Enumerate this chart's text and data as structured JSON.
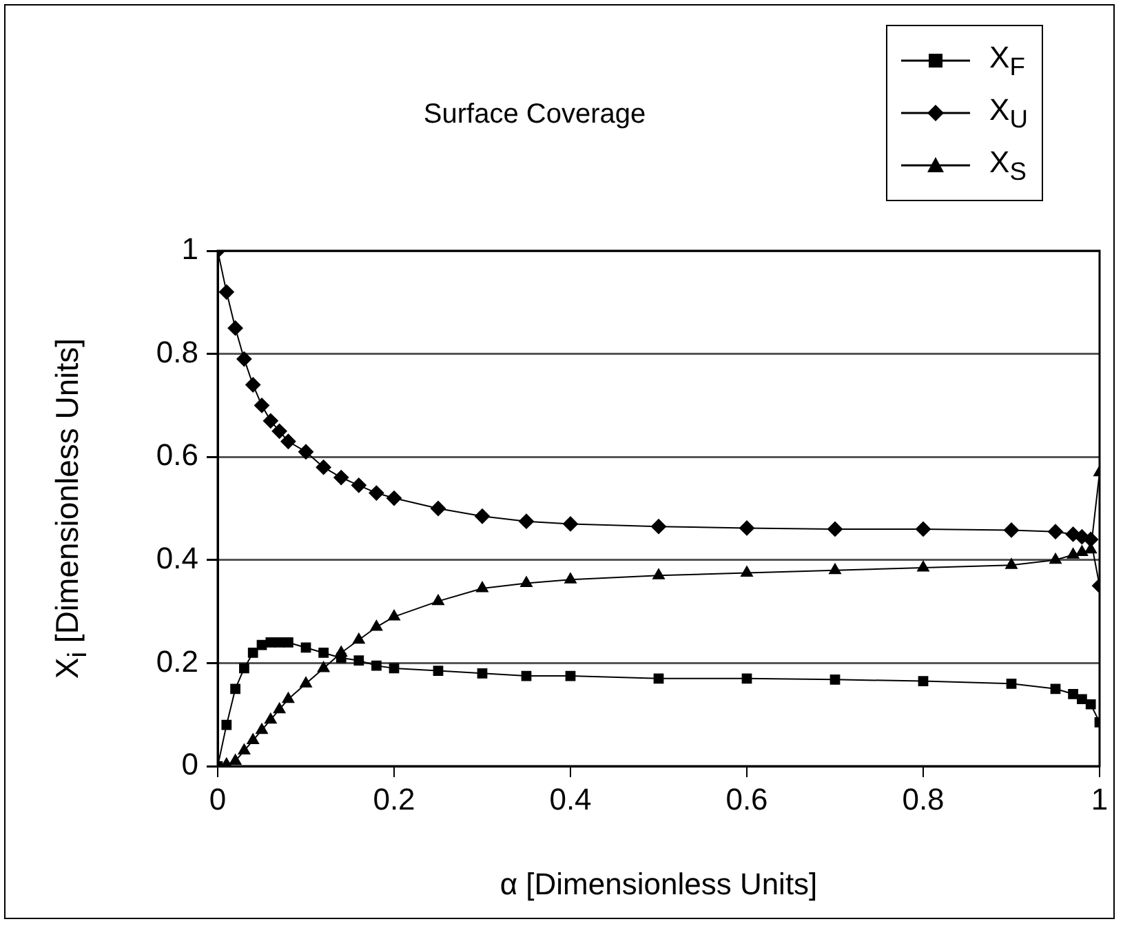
{
  "chart_data": {
    "type": "line",
    "title": "Surface Coverage",
    "xlabel": "α [Dimensionless Units]",
    "ylabel": "X$_{i}$ [Dimensionless Units]",
    "xlim": [
      0,
      1
    ],
    "xticks": [
      0,
      0.2,
      0.4,
      0.6,
      0.8,
      1
    ],
    "ylim": [
      0,
      1
    ],
    "yticks": [
      0,
      0.2,
      0.4,
      0.6,
      0.8,
      1
    ],
    "grid": "y",
    "legend": "top right",
    "line_style": "solid",
    "x": [
      0,
      0.01,
      0.02,
      0.03,
      0.04,
      0.05,
      0.06,
      0.07,
      0.08,
      0.1,
      0.12,
      0.14,
      0.16,
      0.18,
      0.2,
      0.25,
      0.3,
      0.35,
      0.4,
      0.5,
      0.6,
      0.7,
      0.8,
      0.9,
      0.95,
      0.97,
      0.98,
      0.99,
      1
    ],
    "series": [
      {
        "name": "X$_{F}$",
        "color": "#000000",
        "marker": "square",
        "values": [
          0,
          0.08,
          0.15,
          0.19,
          0.22,
          0.235,
          0.24,
          0.24,
          0.24,
          0.23,
          0.22,
          0.21,
          0.205,
          0.195,
          0.19,
          0.185,
          0.18,
          0.175,
          0.175,
          0.17,
          0.17,
          0.168,
          0.165,
          0.16,
          0.15,
          0.14,
          0.13,
          0.12,
          0.085
        ]
      },
      {
        "name": "X$_{U}$",
        "color": "#000000",
        "marker": "diamond",
        "values": [
          1,
          0.92,
          0.85,
          0.79,
          0.74,
          0.7,
          0.67,
          0.65,
          0.63,
          0.61,
          0.58,
          0.56,
          0.545,
          0.53,
          0.52,
          0.5,
          0.485,
          0.475,
          0.47,
          0.465,
          0.462,
          0.46,
          0.46,
          0.458,
          0.455,
          0.45,
          0.445,
          0.44,
          0.35
        ]
      },
      {
        "name": "X$_{S}$",
        "color": "#000000",
        "marker": "triangle",
        "values": [
          0,
          0.003,
          0.01,
          0.03,
          0.05,
          0.07,
          0.09,
          0.11,
          0.13,
          0.16,
          0.19,
          0.22,
          0.245,
          0.27,
          0.29,
          0.32,
          0.345,
          0.355,
          0.362,
          0.37,
          0.375,
          0.38,
          0.385,
          0.39,
          0.4,
          0.41,
          0.415,
          0.42,
          0.57
        ]
      }
    ]
  }
}
